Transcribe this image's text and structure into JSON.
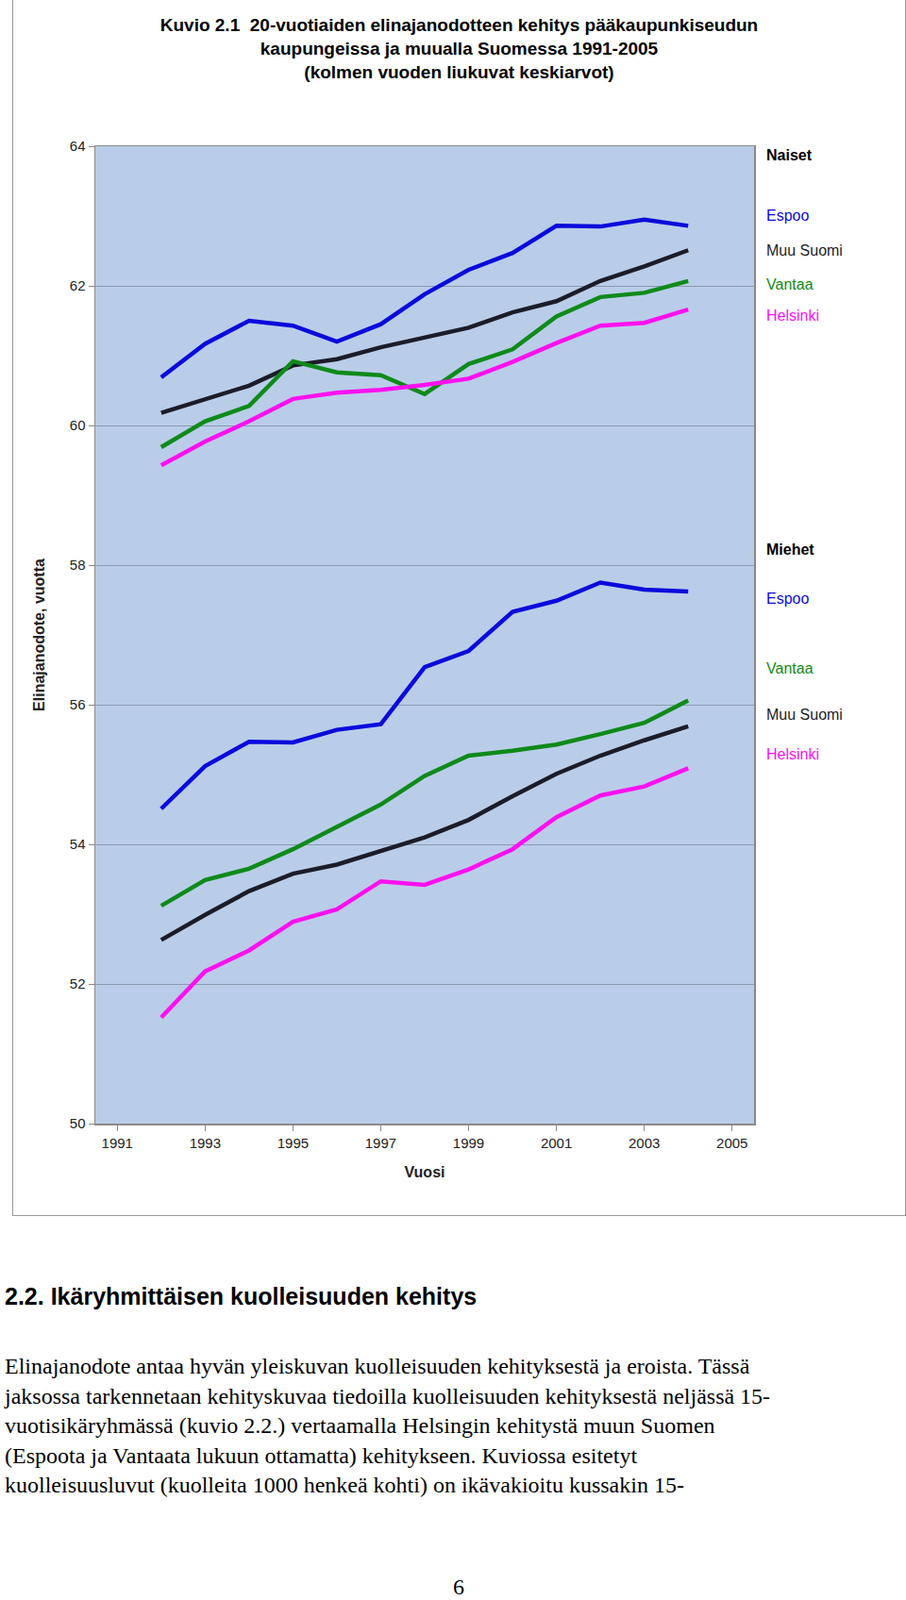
{
  "chart_data": {
    "type": "line",
    "title": [
      "Kuvio 2.1  20-vuotiaiden elinajanodotteen kehitys pääkaupunkiseudun",
      "kaupungeissa ja muualla Suomessa 1991-2005",
      "(kolmen vuoden liukuvat keskiarvot)"
    ],
    "x_label": "Vuosi",
    "y_label": "Elinajanodote, vuotta",
    "x": [
      1992,
      1993,
      1994,
      1995,
      1996,
      1997,
      1998,
      1999,
      2000,
      2001,
      2002,
      2003,
      2004
    ],
    "xlim": [
      1990.5,
      2005.5
    ],
    "xticks": [
      1991,
      1993,
      1995,
      1997,
      1999,
      2001,
      2003,
      2005
    ],
    "ylim": [
      50,
      64
    ],
    "yticks": [
      50,
      52,
      54,
      56,
      58,
      60,
      62,
      64
    ],
    "grid": true,
    "groups": [
      {
        "name": "Naiset",
        "series": [
          {
            "name": "Espoo",
            "color": "#0a0adc",
            "values": [
              60.69,
              61.17,
              61.5,
              61.43,
              61.2,
              61.45,
              61.88,
              62.23,
              62.47,
              62.86,
              62.85,
              62.95,
              62.86
            ]
          },
          {
            "name": "Muu Suomi",
            "color": "#1c1c28",
            "values": [
              60.18,
              60.38,
              60.57,
              60.86,
              60.95,
              61.12,
              61.26,
              61.4,
              61.62,
              61.78,
              62.07,
              62.28,
              62.51
            ]
          },
          {
            "name": "Vantaa",
            "color": "#0f8a1a",
            "values": [
              59.69,
              60.06,
              60.28,
              60.92,
              60.76,
              60.72,
              60.45,
              60.88,
              61.09,
              61.56,
              61.84,
              61.9,
              62.07
            ]
          },
          {
            "name": "Helsinki",
            "color": "#ff10f0",
            "values": [
              59.43,
              59.77,
              60.06,
              60.38,
              60.47,
              60.51,
              60.58,
              60.67,
              60.91,
              61.18,
              61.43,
              61.47,
              61.66
            ]
          }
        ]
      },
      {
        "name": "Miehet",
        "series": [
          {
            "name": "Espoo",
            "color": "#0a0adc",
            "values": [
              54.51,
              55.12,
              55.47,
              55.46,
              55.64,
              55.72,
              56.54,
              56.77,
              57.33,
              57.49,
              57.75,
              57.65,
              57.62
            ]
          },
          {
            "name": "Vantaa",
            "color": "#0f8a1a",
            "values": [
              53.12,
              53.49,
              53.65,
              53.93,
              54.25,
              54.57,
              54.98,
              55.27,
              55.34,
              55.43,
              55.58,
              55.74,
              56.06
            ]
          },
          {
            "name": "Muu Suomi",
            "color": "#1c1c28",
            "values": [
              52.63,
              52.99,
              53.33,
              53.58,
              53.71,
              53.9,
              54.1,
              54.35,
              54.69,
              55.01,
              55.27,
              55.49,
              55.69
            ]
          },
          {
            "name": "Helsinki",
            "color": "#ff10f0",
            "values": [
              51.52,
              52.18,
              52.48,
              52.89,
              53.07,
              53.47,
              53.42,
              53.64,
              53.93,
              54.39,
              54.7,
              54.83,
              55.09
            ]
          }
        ]
      }
    ]
  },
  "document": {
    "heading": "2.2. Ikäryhmittäisen kuolleisuuden kehitys",
    "paragraph_lines": [
      "Elinajanodote antaa hyvän yleiskuvan kuolleisuuden kehityksestä ja eroista. Tässä",
      "jaksossa tarkennetaan kehityskuvaa tiedoilla kuolleisuuden kehityksestä neljässä 15-",
      "vuotisikäryhmässä (kuvio 2.2.) vertaamalla Helsingin kehitystä muun Suomen",
      "(Espoota ja Vantaata lukuun ottamatta) kehitykseen. Kuviossa esitetyt",
      "kuolleisuusluvut (kuolleita 1000 henkeä kohti) on ikävakioitu kussakin 15-"
    ],
    "page_number": 6
  }
}
